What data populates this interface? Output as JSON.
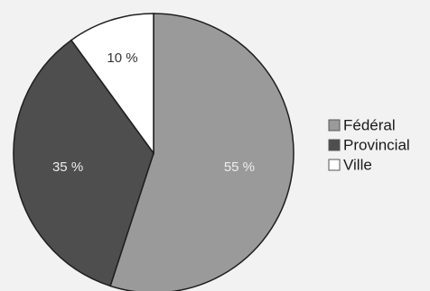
{
  "chart_data": {
    "type": "pie",
    "slices": [
      {
        "label": "Fédéral",
        "value": 55,
        "data_label": "55 %",
        "color": "#9a9a9a"
      },
      {
        "label": "Provincial",
        "value": 35,
        "data_label": "35 %",
        "color": "#4e4e4e"
      },
      {
        "label": "Ville",
        "value": 10,
        "data_label": "10 %",
        "color": "#ffffff"
      }
    ],
    "legend_position": "right",
    "label_colors": [
      "#eeeeee",
      "#eeeeee",
      "#333333"
    ],
    "outline_color": "#1f1f1f"
  }
}
